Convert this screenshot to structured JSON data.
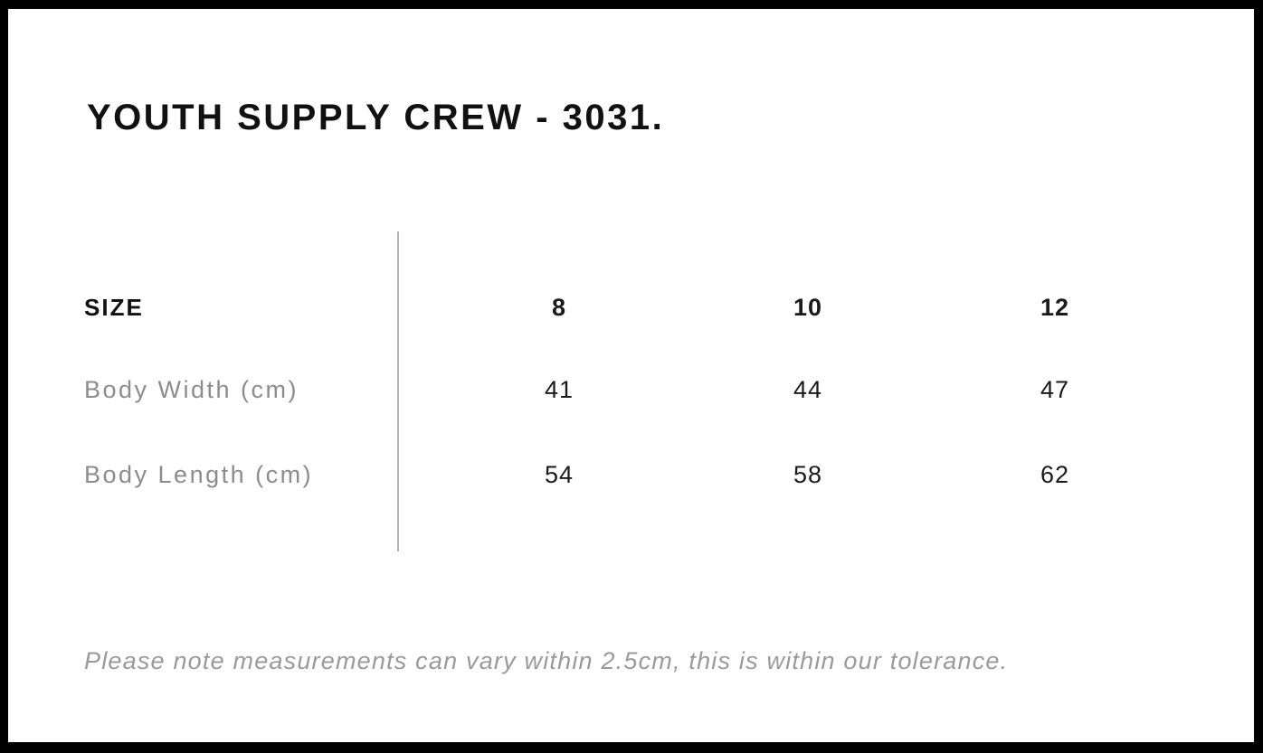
{
  "title": "YOUTH SUPPLY CREW - 3031.",
  "size_chart": {
    "header": {
      "label": "SIZE",
      "sizes": [
        "8",
        "10",
        "12"
      ]
    },
    "rows": [
      {
        "label": "Body Width (cm)",
        "values": [
          "41",
          "44",
          "47"
        ]
      },
      {
        "label": "Body Length (cm)",
        "values": [
          "54",
          "58",
          "62"
        ]
      }
    ]
  },
  "note": "Please note measurements can vary within 2.5cm, this is within our tolerance.",
  "colors": {
    "background": "#ffffff",
    "border": "#000000",
    "heading_text": "#111111",
    "value_text": "#1a1a1a",
    "label_text": "#8c8c8c",
    "note_text": "#9a9a9a",
    "divider": "#b3b3b3"
  }
}
